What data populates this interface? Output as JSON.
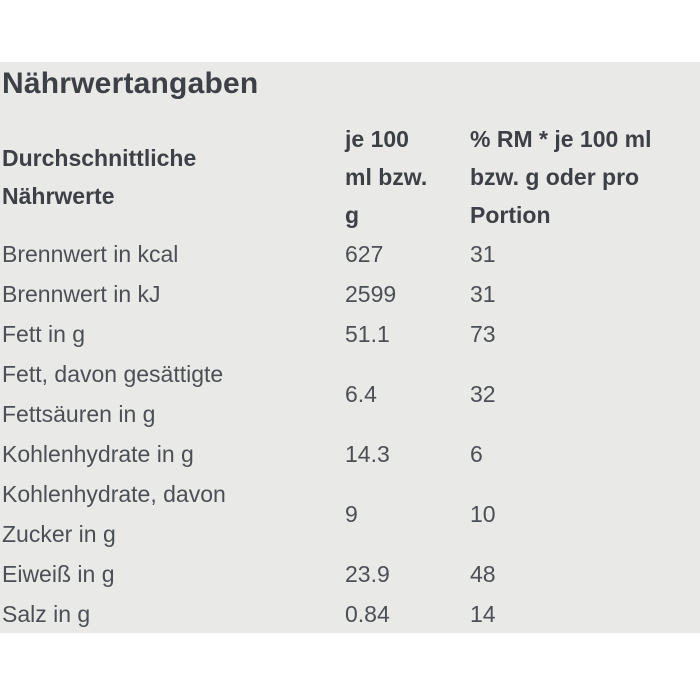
{
  "page": {
    "title": "Nährwertangaben"
  },
  "table": {
    "headers": {
      "col1": "Durchschnittliche Nährwerte",
      "col2": "je 100 ml bzw. g",
      "col3": "% RM * je 100 ml bzw. g oder pro Portion"
    },
    "rows": [
      {
        "label": "Brennwert in kcal",
        "per100": "627",
        "rm": "31"
      },
      {
        "label": "Brennwert in kJ",
        "per100": "2599",
        "rm": "31"
      },
      {
        "label": "Fett in g",
        "per100": "51.1",
        "rm": "73"
      },
      {
        "label": "Fett, davon gesättigte Fettsäuren in g",
        "per100": "6.4",
        "rm": "32"
      },
      {
        "label": "Kohlenhydrate in g",
        "per100": "14.3",
        "rm": "6"
      },
      {
        "label": "Kohlenhydrate, davon Zucker in g",
        "per100": "9",
        "rm": "10"
      },
      {
        "label": "Eiweiß in g",
        "per100": "23.9",
        "rm": "48"
      },
      {
        "label": "Salz in g",
        "per100": "0.84",
        "rm": "14"
      }
    ]
  },
  "colors": {
    "panel_bg": "#e9e9e7",
    "heading_text": "#3d4147",
    "body_text": "#4c5056",
    "page_bg": "#ffffff"
  }
}
